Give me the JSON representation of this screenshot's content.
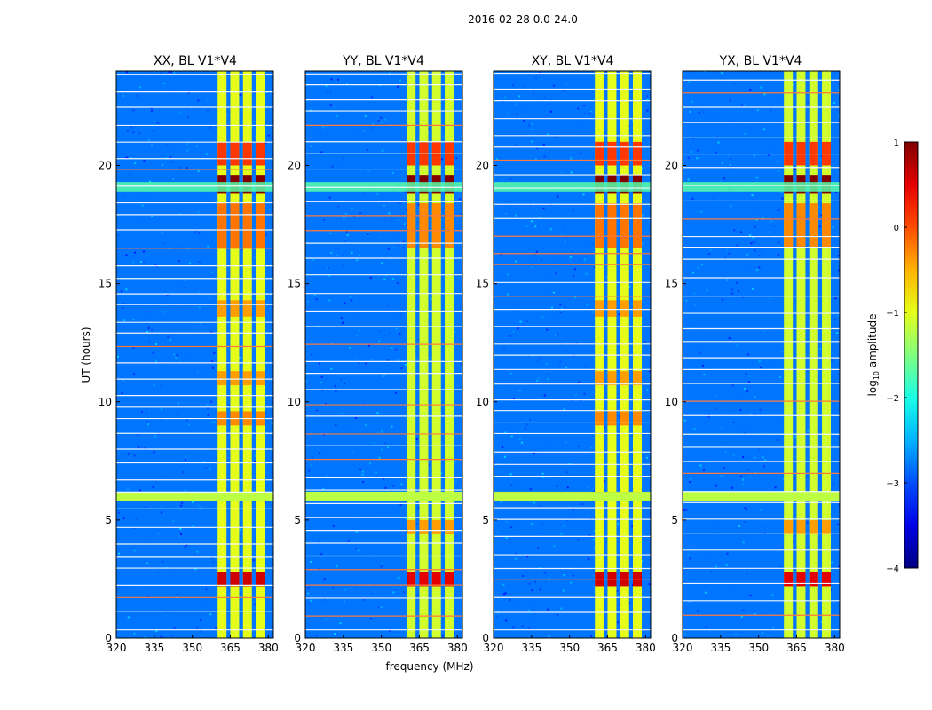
{
  "figure": {
    "suptitle": "2016-02-28 0.0-24.0",
    "xlabel": "frequency (MHz)",
    "ylabel": "UT (hours)",
    "colorbar_label": "log10 amplitude"
  },
  "colorbar": {
    "ticks": [
      "1",
      "0",
      "−1",
      "−2",
      "−3",
      "−4"
    ],
    "range": [
      -4,
      1
    ],
    "colormap": "jet"
  },
  "chart_data": [
    {
      "type": "heatmap",
      "title": "XX, BL V1*V4",
      "xlim": [
        320,
        382
      ],
      "ylim": [
        0,
        24
      ],
      "xticks": [
        320,
        335,
        350,
        365,
        380
      ],
      "yticks": [
        0,
        5,
        10,
        15,
        20
      ],
      "xlabel": "",
      "ylabel": "UT (hours)",
      "background_log_amplitude": -2.8,
      "signal_columns_mhz": [
        [
          360,
          363.5
        ],
        [
          365,
          368.5
        ],
        [
          370,
          373.5
        ],
        [
          375,
          378.5
        ]
      ],
      "signal_log_amplitude": -1.0,
      "peak_events_ut": [
        [
          18.8,
          19.6,
          1.0
        ],
        [
          2.2,
          2.8,
          0.6
        ],
        [
          20.0,
          21.0,
          0.1
        ],
        [
          16.5,
          18.4,
          -0.2
        ],
        [
          9.0,
          9.6,
          -0.3
        ],
        [
          13.6,
          14.3,
          -0.4
        ],
        [
          10.7,
          11.3,
          -0.4
        ]
      ],
      "leaking_band_ut": [
        18.9,
        19.3
      ],
      "blank_bands_ut": [
        [
          5.8,
          6.2
        ]
      ]
    },
    {
      "type": "heatmap",
      "title": "YY, BL V1*V4",
      "xlim": [
        320,
        382
      ],
      "ylim": [
        0,
        24
      ],
      "xticks": [
        320,
        335,
        350,
        365,
        380
      ],
      "yticks": [
        0,
        5,
        10,
        15,
        20
      ],
      "xlabel": "frequency (MHz)",
      "ylabel": "",
      "background_log_amplitude": -2.8,
      "signal_columns_mhz": [
        [
          360,
          363.5
        ],
        [
          365,
          368.5
        ],
        [
          370,
          373.5
        ],
        [
          375,
          378.5
        ]
      ],
      "signal_log_amplitude": -1.1,
      "peak_events_ut": [
        [
          18.8,
          19.6,
          1.0
        ],
        [
          2.2,
          2.8,
          0.5
        ],
        [
          20.0,
          21.0,
          0.1
        ],
        [
          16.5,
          18.4,
          -0.3
        ],
        [
          4.4,
          5.0,
          -0.4
        ]
      ],
      "leaking_band_ut": [
        18.9,
        19.3
      ],
      "blank_bands_ut": [
        [
          5.8,
          6.2
        ]
      ]
    },
    {
      "type": "heatmap",
      "title": "XY, BL V1*V4",
      "xlim": [
        320,
        382
      ],
      "ylim": [
        0,
        24
      ],
      "xticks": [
        320,
        335,
        350,
        365,
        380
      ],
      "yticks": [
        0,
        5,
        10,
        15,
        20
      ],
      "xlabel": "",
      "ylabel": "",
      "background_log_amplitude": -2.8,
      "signal_columns_mhz": [
        [
          360,
          363.5
        ],
        [
          365,
          368.5
        ],
        [
          370,
          373.5
        ],
        [
          375,
          378.5
        ]
      ],
      "signal_log_amplitude": -1.0,
      "peak_events_ut": [
        [
          18.8,
          19.6,
          1.0
        ],
        [
          2.2,
          2.8,
          0.6
        ],
        [
          20.0,
          21.0,
          0.1
        ],
        [
          16.5,
          18.4,
          -0.2
        ],
        [
          9.0,
          9.6,
          -0.3
        ],
        [
          13.6,
          14.3,
          -0.4
        ],
        [
          10.7,
          11.3,
          -0.4
        ]
      ],
      "leaking_band_ut": [
        18.9,
        19.3
      ],
      "blank_bands_ut": [
        [
          5.8,
          6.2
        ]
      ]
    },
    {
      "type": "heatmap",
      "title": "YX, BL V1*V4",
      "xlim": [
        320,
        382
      ],
      "ylim": [
        0,
        24
      ],
      "xticks": [
        320,
        335,
        350,
        365,
        380
      ],
      "yticks": [
        0,
        5,
        10,
        15,
        20
      ],
      "xlabel": "",
      "ylabel": "",
      "background_log_amplitude": -2.8,
      "signal_columns_mhz": [
        [
          360,
          363.5
        ],
        [
          365,
          368.5
        ],
        [
          370,
          373.5
        ],
        [
          375,
          378.5
        ]
      ],
      "signal_log_amplitude": -1.1,
      "peak_events_ut": [
        [
          18.8,
          19.6,
          1.0
        ],
        [
          2.2,
          2.8,
          0.5
        ],
        [
          20.0,
          21.0,
          0.1
        ],
        [
          16.5,
          18.4,
          -0.3
        ],
        [
          4.4,
          5.0,
          -0.4
        ]
      ],
      "leaking_band_ut": [
        18.9,
        19.3
      ],
      "blank_bands_ut": [
        [
          5.8,
          6.2
        ]
      ]
    }
  ]
}
